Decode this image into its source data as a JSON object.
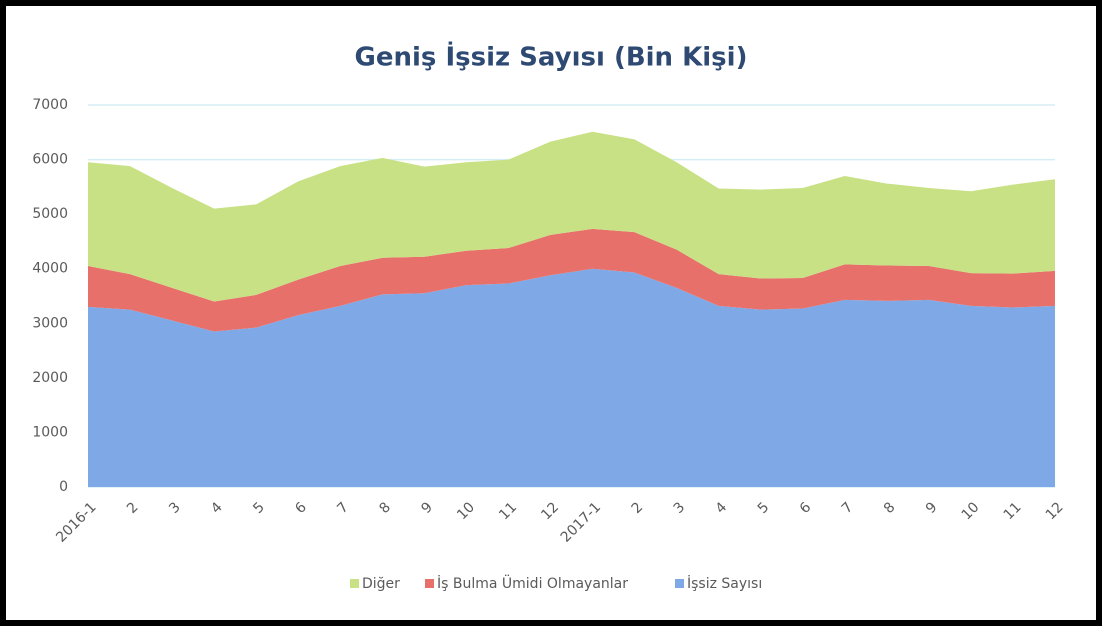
{
  "chart_data": {
    "type": "stacked-area",
    "title": "Geniş İşsiz Sayısı (Bin Kişi)",
    "categories": [
      "2016-1",
      "2",
      "3",
      "4",
      "5",
      "6",
      "7",
      "8",
      "9",
      "10",
      "11",
      "12",
      "2017-1",
      "2",
      "3",
      "4",
      "5",
      "6",
      "7",
      "8",
      "9",
      "10",
      "11",
      "12"
    ],
    "series": [
      {
        "name": "İşsiz Sayısı",
        "color": "#7fa8e6",
        "values": [
          3300,
          3250,
          3050,
          2850,
          2920,
          3150,
          3320,
          3530,
          3550,
          3700,
          3730,
          3880,
          4000,
          3930,
          3650,
          3320,
          3250,
          3270,
          3430,
          3410,
          3430,
          3320,
          3290,
          3320
        ]
      },
      {
        "name": "İş Bulma Ümidi Olmayanlar",
        "color": "#e8706b",
        "values": [
          750,
          650,
          600,
          550,
          600,
          650,
          730,
          670,
          670,
          630,
          650,
          740,
          730,
          740,
          700,
          580,
          570,
          560,
          650,
          650,
          620,
          600,
          620,
          640
        ]
      },
      {
        "name": "Diğer",
        "color": "#c8e184",
        "values": [
          1900,
          1980,
          1830,
          1700,
          1660,
          1800,
          1830,
          1830,
          1650,
          1620,
          1620,
          1710,
          1780,
          1700,
          1600,
          1570,
          1630,
          1650,
          1620,
          1500,
          1430,
          1500,
          1630,
          1680
        ]
      }
    ],
    "ylim": [
      0,
      7000
    ],
    "yticks": [
      0,
      1000,
      2000,
      3000,
      4000,
      5000,
      6000,
      7000
    ],
    "grid": true
  }
}
